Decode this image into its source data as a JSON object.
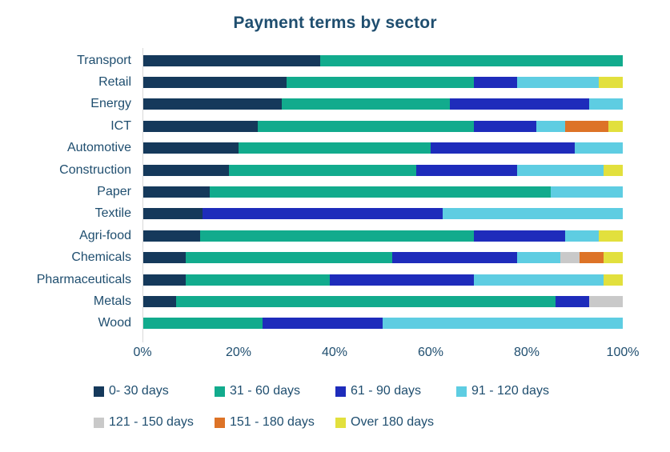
{
  "chart_data": {
    "type": "bar",
    "orientation": "horizontal",
    "stacked": true,
    "title": "Payment terms by sector",
    "categories": [
      "Transport",
      "Retail",
      "Energy",
      "ICT",
      "Automotive",
      "Construction",
      "Paper",
      "Textile",
      "Agri-food",
      "Chemicals",
      "Pharmaceuticals",
      "Metals",
      "Wood"
    ],
    "series": [
      {
        "name": "0- 30 days",
        "color": "#15395b",
        "values": [
          37,
          30,
          29,
          24,
          20,
          18,
          14,
          12.5,
          12,
          9,
          9,
          7,
          0
        ]
      },
      {
        "name": "31 - 60 days",
        "color": "#12ab8d",
        "values": [
          63,
          39,
          35,
          45,
          40,
          39,
          71,
          0,
          57,
          43,
          30,
          79,
          25
        ]
      },
      {
        "name": "61 - 90 days",
        "color": "#1e2cbb",
        "values": [
          0,
          9,
          29,
          13,
          30,
          21,
          0,
          50,
          19,
          26,
          30,
          7,
          25
        ]
      },
      {
        "name": "91 - 120 days",
        "color": "#5ecde2",
        "values": [
          0,
          17,
          7,
          6,
          10,
          18,
          15,
          37.5,
          7,
          9,
          27,
          0,
          50
        ]
      },
      {
        "name": "121 - 150 days",
        "color": "#c9c9c9",
        "values": [
          0,
          0,
          0,
          0,
          0,
          0,
          0,
          0,
          0,
          4,
          0,
          7,
          0
        ]
      },
      {
        "name": "151 - 180 days",
        "color": "#dd7327",
        "values": [
          0,
          0,
          0,
          9,
          0,
          0,
          0,
          0,
          0,
          5,
          0,
          0,
          0
        ]
      },
      {
        "name": "Over 180 days",
        "color": "#e2e03d",
        "values": [
          0,
          5,
          0,
          3,
          0,
          4,
          0,
          0,
          5,
          4,
          4,
          0,
          0
        ]
      }
    ],
    "x_ticks": [
      "0%",
      "20%",
      "40%",
      "60%",
      "80%",
      "100%"
    ],
    "xlim": [
      0,
      100
    ],
    "grid": false,
    "legend_position": "bottom",
    "legend_items_per_row": 4,
    "background_color": "#ffffff",
    "text_color": "#1f4e6f",
    "axis_line_color": "#d9d9d9"
  }
}
